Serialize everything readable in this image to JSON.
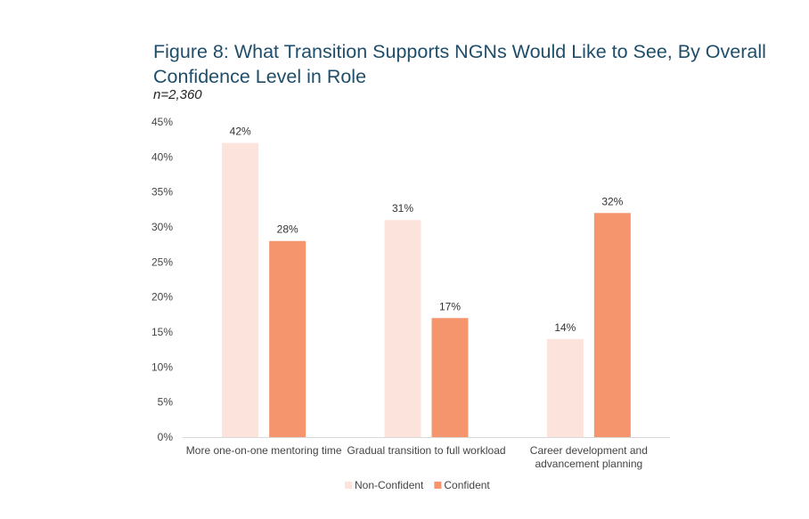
{
  "chart_data": {
    "type": "bar",
    "title": "Figure 8: What Transition Supports NGNs Would Like to See, By Overall Confidence Level in Role",
    "subtitle": "n=2,360",
    "categories": [
      [
        "More one-on-one mentoring time"
      ],
      [
        "Gradual transition to full workload"
      ],
      [
        "Career development and",
        "advancement planning"
      ]
    ],
    "series": [
      {
        "name": "Non-Confident",
        "color": "#fce4dc",
        "values": [
          42,
          31,
          14
        ],
        "labels": [
          "42%",
          "31%",
          "14%"
        ]
      },
      {
        "name": "Confident",
        "color": "#f4956d",
        "values": [
          28,
          17,
          32
        ],
        "labels": [
          "28%",
          "17%",
          "32%"
        ]
      }
    ],
    "ylim": [
      0,
      45
    ],
    "yticks": [
      0,
      5,
      10,
      15,
      20,
      25,
      30,
      35,
      40,
      45
    ],
    "ytick_labels": [
      "0%",
      "5%",
      "10%",
      "15%",
      "20%",
      "25%",
      "30%",
      "35%",
      "40%",
      "45%"
    ],
    "xlabel": "",
    "ylabel": "",
    "grid": false,
    "legend_position": "bottom"
  }
}
